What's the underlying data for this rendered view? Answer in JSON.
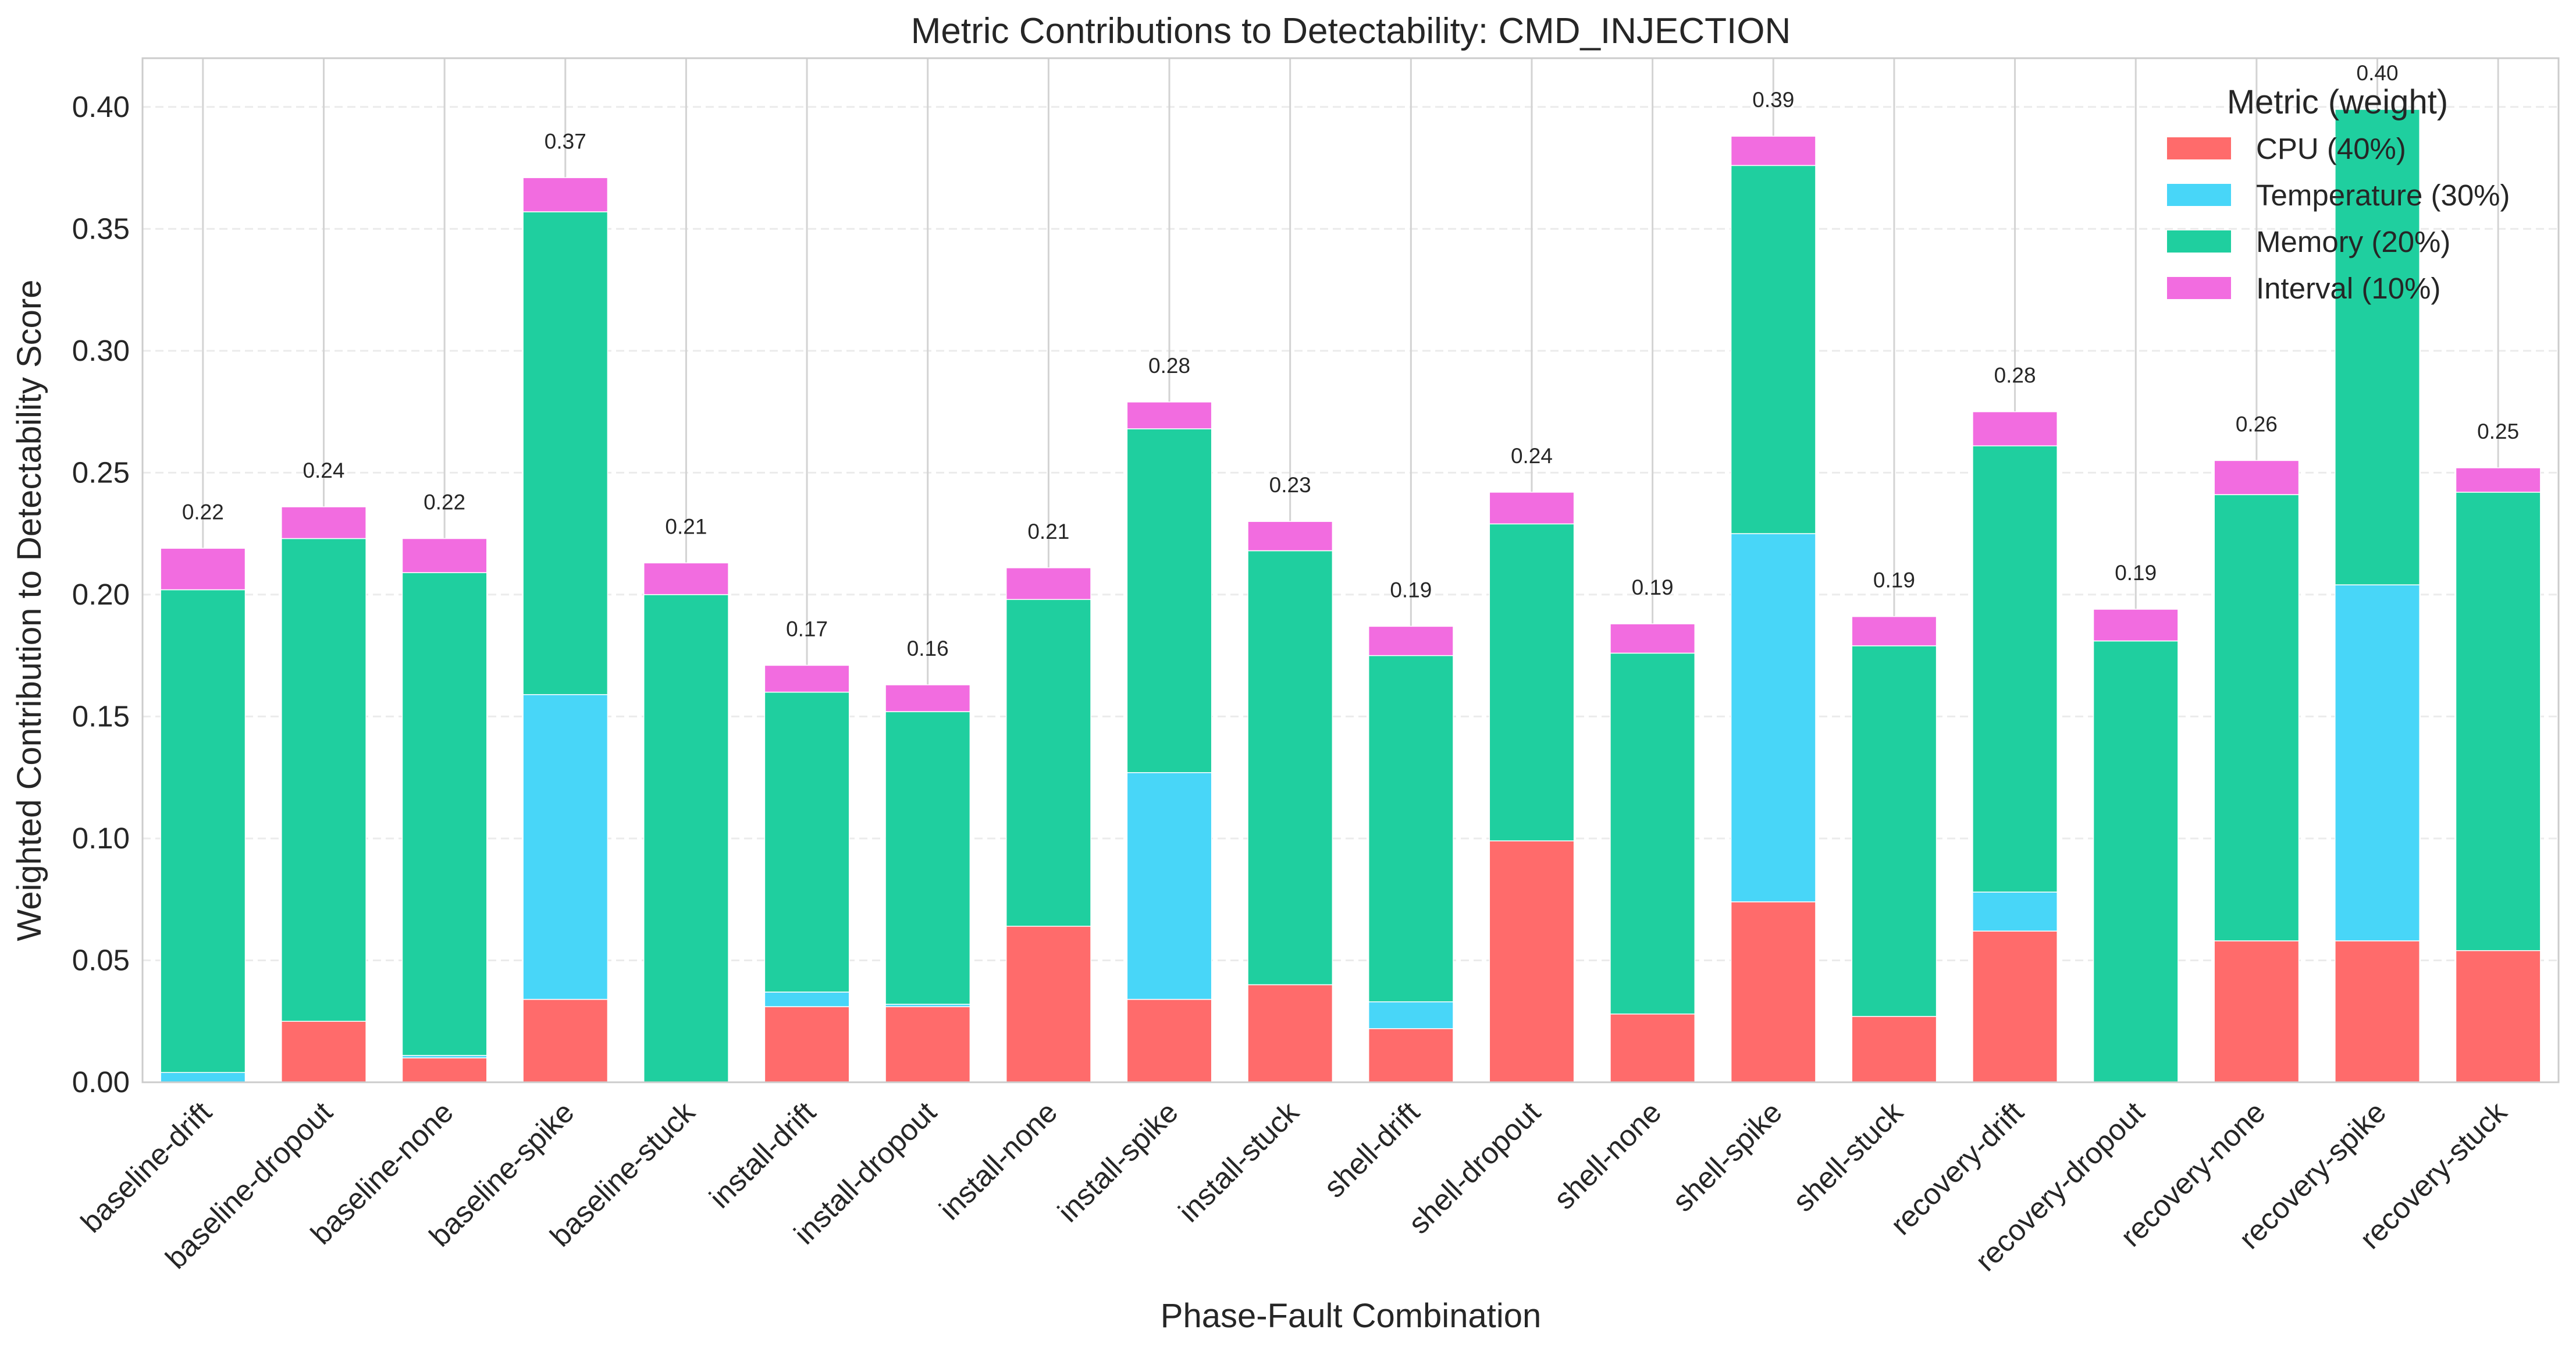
{
  "chart_data": {
    "type": "bar",
    "stacked": true,
    "title": "Metric Contributions to Detectability: CMD_INJECTION",
    "xlabel": "Phase-Fault Combination",
    "ylabel": "Weighted Contribution to Detectability Score",
    "ylim": [
      0,
      0.42
    ],
    "yticks": [
      "0.00",
      "0.05",
      "0.10",
      "0.15",
      "0.20",
      "0.25",
      "0.30",
      "0.35",
      "0.40"
    ],
    "grid": true,
    "legend": {
      "title": "Metric (weight)",
      "placement": "top-right"
    },
    "categories": [
      "baseline-drift",
      "baseline-dropout",
      "baseline-none",
      "baseline-spike",
      "baseline-stuck",
      "install-drift",
      "install-dropout",
      "install-none",
      "install-spike",
      "install-stuck",
      "shell-drift",
      "shell-dropout",
      "shell-none",
      "shell-spike",
      "shell-stuck",
      "recovery-drift",
      "recovery-dropout",
      "recovery-none",
      "recovery-spike",
      "recovery-stuck"
    ],
    "series": [
      {
        "name": "CPU (40%)",
        "color": "#ff6b6b",
        "values": [
          0.0,
          0.025,
          0.01,
          0.034,
          0.0,
          0.031,
          0.031,
          0.064,
          0.034,
          0.04,
          0.022,
          0.099,
          0.028,
          0.074,
          0.027,
          0.062,
          0.0,
          0.058,
          0.058,
          0.054
        ]
      },
      {
        "name": "Temperature (30%)",
        "color": "#48d6f8",
        "values": [
          0.004,
          0.0,
          0.001,
          0.125,
          0.0,
          0.006,
          0.001,
          0.0,
          0.093,
          0.0,
          0.011,
          0.0,
          0.0,
          0.151,
          0.0,
          0.016,
          0.0,
          0.0,
          0.146,
          0.0
        ]
      },
      {
        "name": "Memory (20%)",
        "color": "#1fcf9f",
        "values": [
          0.198,
          0.198,
          0.198,
          0.198,
          0.2,
          0.123,
          0.12,
          0.134,
          0.141,
          0.178,
          0.142,
          0.13,
          0.148,
          0.151,
          0.152,
          0.183,
          0.181,
          0.183,
          0.195,
          0.188
        ]
      },
      {
        "name": "Interval (10%)",
        "color": "#f26ce0",
        "values": [
          0.017,
          0.013,
          0.014,
          0.014,
          0.013,
          0.011,
          0.011,
          0.013,
          0.011,
          0.012,
          0.012,
          0.013,
          0.012,
          0.012,
          0.012,
          0.014,
          0.013,
          0.014,
          0.0,
          0.01
        ]
      }
    ],
    "totals_labels": [
      "0.22",
      "0.24",
      "0.22",
      "0.37",
      "0.21",
      "0.17",
      "0.16",
      "0.21",
      "0.28",
      "0.23",
      "0.19",
      "0.24",
      "0.19",
      "0.39",
      "0.19",
      "0.28",
      "0.19",
      "0.26",
      "0.40",
      "0.25"
    ]
  }
}
